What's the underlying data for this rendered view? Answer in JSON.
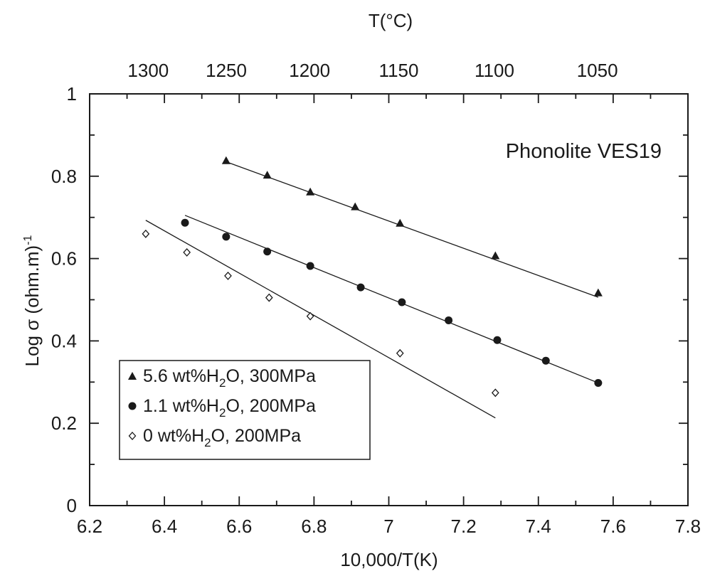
{
  "chart_data": {
    "type": "scatter",
    "title": "",
    "annotation": "Phonolite VES19",
    "xlabel": "10,000/T(K)",
    "top_xlabel": "T(°C)",
    "ylabel": "Log σ (ohm.m)",
    "ylabel_superscript": "-1",
    "xlim": [
      6.2,
      7.8
    ],
    "ylim": [
      0,
      1
    ],
    "x_ticks": [
      "6.2",
      "6.4",
      "6.6",
      "6.8",
      "7",
      "7.2",
      "7.4",
      "7.6",
      "7.8"
    ],
    "y_ticks": [
      "0",
      "0.2",
      "0.4",
      "0.6",
      "0.8",
      "1"
    ],
    "top_ticks": [
      {
        "label": "1300",
        "celsius": 1300
      },
      {
        "label": "1250",
        "celsius": 1250
      },
      {
        "label": "1200",
        "celsius": 1200
      },
      {
        "label": "1150",
        "celsius": 1150
      },
      {
        "label": "1100",
        "celsius": 1100
      },
      {
        "label": "1050",
        "celsius": 1050
      }
    ],
    "grid": false,
    "legend_position": "bottom-left",
    "series": [
      {
        "name": "5.6 wt%H2O, 300MPa",
        "legend_parts": [
          "5.6 wt%H",
          "2",
          "O, 300MPa"
        ],
        "marker": "triangle",
        "color": "#1a1a1a",
        "points": [
          [
            6.565,
            0.838
          ],
          [
            6.675,
            0.803
          ],
          [
            6.79,
            0.762
          ],
          [
            6.91,
            0.726
          ],
          [
            7.03,
            0.686
          ],
          [
            7.285,
            0.607
          ],
          [
            7.56,
            0.517
          ]
        ],
        "fit": [
          [
            6.565,
            0.835
          ],
          [
            7.56,
            0.506
          ]
        ]
      },
      {
        "name": "1.1 wt%H2O, 200MPa",
        "legend_parts": [
          "1.1 wt%H",
          "2",
          "O, 200MPa"
        ],
        "marker": "circle",
        "color": "#1a1a1a",
        "points": [
          [
            6.455,
            0.687
          ],
          [
            6.565,
            0.653
          ],
          [
            6.675,
            0.617
          ],
          [
            6.79,
            0.582
          ],
          [
            6.925,
            0.53
          ],
          [
            7.035,
            0.494
          ],
          [
            7.16,
            0.45
          ],
          [
            7.29,
            0.402
          ],
          [
            7.42,
            0.352
          ],
          [
            7.56,
            0.298
          ]
        ],
        "fit": [
          [
            6.455,
            0.705
          ],
          [
            7.56,
            0.298
          ]
        ]
      },
      {
        "name": "0 wt%H2O, 200MPa",
        "legend_parts": [
          "0 wt%H",
          "2",
          "O, 200MPa"
        ],
        "marker": "diamond",
        "color": "#1a1a1a",
        "points": [
          [
            6.35,
            0.66
          ],
          [
            6.46,
            0.615
          ],
          [
            6.57,
            0.558
          ],
          [
            6.68,
            0.505
          ],
          [
            6.79,
            0.46
          ],
          [
            7.03,
            0.37
          ],
          [
            7.285,
            0.274
          ]
        ],
        "fit": [
          [
            6.35,
            0.693
          ],
          [
            7.285,
            0.213
          ]
        ]
      }
    ]
  }
}
